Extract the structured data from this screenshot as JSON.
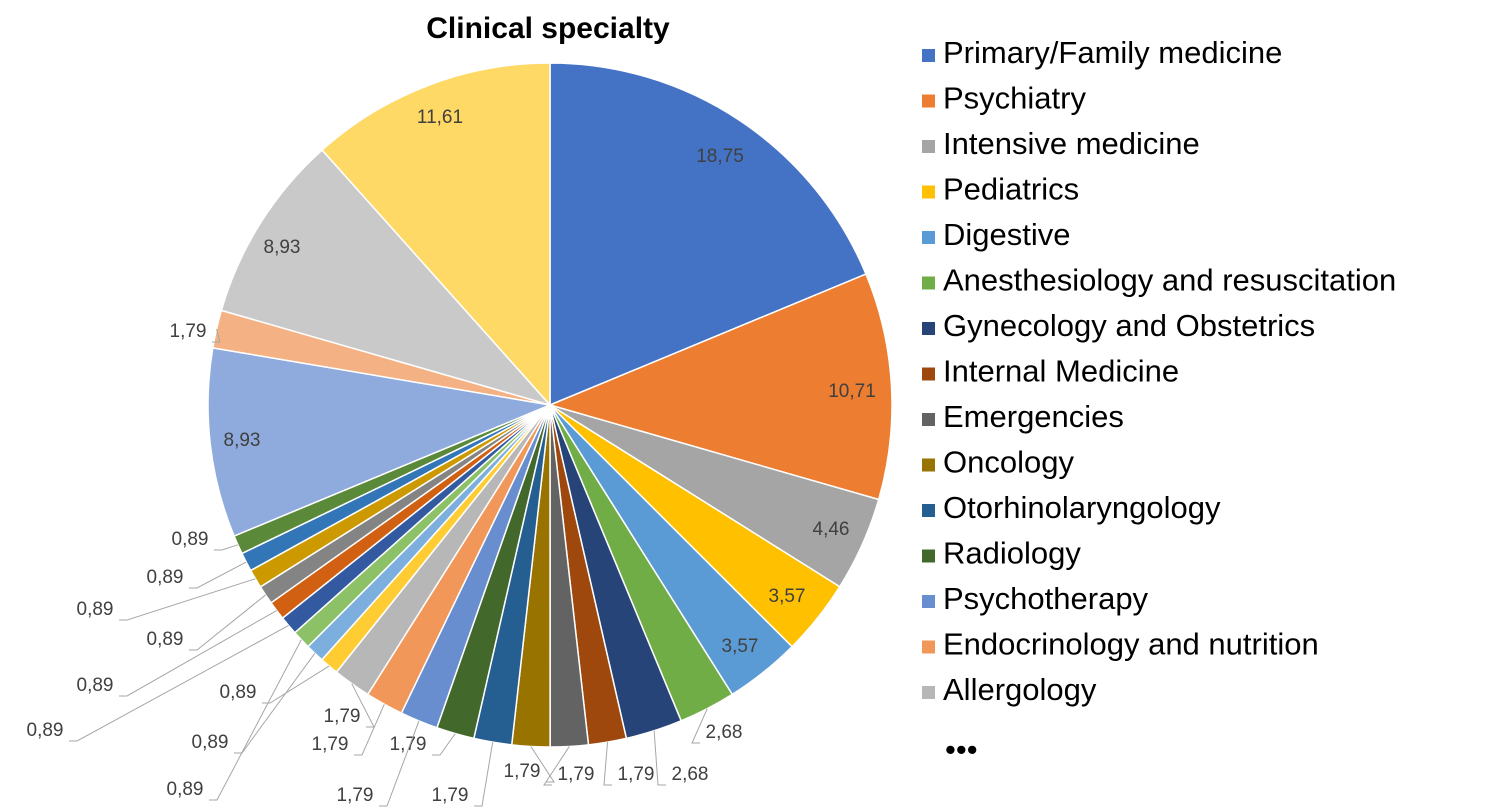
{
  "chart_data": {
    "type": "pie",
    "title": "Clinical specialty",
    "categories": [
      "Primary/Family medicine",
      "Psychiatry",
      "Intensive medicine",
      "Pediatrics",
      "Digestive",
      "Anesthesiology and resuscitation",
      "Gynecology and Obstetrics",
      "Internal Medicine",
      "Emergencies",
      "Oncology",
      "Otorhinolaryngology",
      "Radiology",
      "Psychotherapy",
      "Endocrinology and nutrition",
      "Allergology",
      null,
      null,
      null,
      null,
      null,
      null,
      null,
      null,
      null,
      null,
      null,
      null,
      null
    ],
    "values": [
      18.75,
      10.71,
      4.46,
      3.57,
      3.57,
      2.68,
      2.68,
      1.79,
      1.79,
      1.79,
      1.79,
      1.79,
      1.79,
      1.79,
      1.79,
      0.89,
      0.89,
      0.89,
      0.89,
      0.89,
      0.89,
      0.89,
      0.89,
      0.89,
      8.93,
      1.79,
      8.93,
      11.61
    ],
    "value_labels": [
      "18,75",
      "10,71",
      "4,46",
      "3,57",
      "3,57",
      "2,68",
      "2,68",
      "1,79",
      "1,79",
      "1,79",
      "1,79",
      "1,79",
      "1,79",
      "1,79",
      "1,79",
      "0,89",
      "0,89",
      "0,89",
      "0,89",
      "0,89",
      "0,89",
      "0,89",
      "0,89",
      "0,89",
      "8,93",
      "1,79",
      "8,93",
      "11,61"
    ],
    "colors": [
      "#4472C4",
      "#ED7D31",
      "#A5A5A5",
      "#FFC000",
      "#5B9BD5",
      "#70AD47",
      "#264478",
      "#9E480E",
      "#636363",
      "#997300",
      "#255E91",
      "#43682B",
      "#698ED0",
      "#F1975A",
      "#B7B7B7",
      "#FFCD33",
      "#7CAFDD",
      "#8CC168",
      "#335AA1",
      "#D26012",
      "#848484",
      "#CC9A00",
      "#3276B8",
      "#5A8A39",
      "#8FAADC",
      "#F4B183",
      "#C9C9C9",
      "#FFD966"
    ],
    "legend_more": "•••"
  }
}
